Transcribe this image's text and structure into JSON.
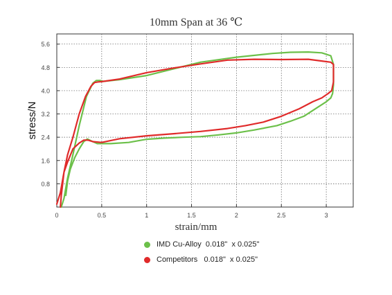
{
  "chart_data": {
    "type": "line",
    "title": "10mm Span at 36 ℃",
    "xlabel": "strain/mm",
    "ylabel": "stress/N",
    "xlim": [
      0,
      3.3
    ],
    "ylim": [
      0,
      5.95
    ],
    "x_ticks": [
      0,
      0.5,
      1,
      1.5,
      2,
      2.5,
      3
    ],
    "x_tick_labels": [
      "0",
      "0.5",
      "1",
      "1.5",
      "2",
      "2.5",
      "3"
    ],
    "y_ticks": [
      0.8,
      1.6,
      2.4,
      3.2,
      4.0,
      4.8,
      5.6
    ],
    "y_tick_labels": [
      "0.8",
      "1.6",
      "2.4",
      "3.2",
      "4.0",
      "4.8",
      "5.6"
    ],
    "grid": "dotted",
    "legend_position": "bottom",
    "series": [
      {
        "name": "IMD Cu-Alloy  0.018\"  x 0.025\"",
        "color": "#6cc04a",
        "x": [
          0.05,
          0.08,
          0.12,
          0.18,
          0.25,
          0.33,
          0.4,
          0.44,
          0.48,
          0.52,
          0.7,
          1.0,
          1.3,
          1.6,
          2.0,
          2.4,
          2.6,
          2.8,
          2.95,
          3.05,
          3.08,
          3.08,
          3.07,
          3.05,
          3.0,
          2.9,
          2.75,
          2.6,
          2.45,
          2.2,
          2.0,
          1.8,
          1.6,
          1.4,
          1.2,
          1.0,
          0.8,
          0.6,
          0.45,
          0.38,
          0.34,
          0.3,
          0.25,
          0.2,
          0.15,
          0.12,
          0.1
        ],
        "y": [
          0.0,
          0.3,
          1.0,
          1.8,
          2.8,
          3.8,
          4.25,
          4.35,
          4.35,
          4.32,
          4.38,
          4.52,
          4.75,
          4.98,
          5.15,
          5.28,
          5.32,
          5.33,
          5.3,
          5.2,
          4.9,
          4.2,
          3.9,
          3.75,
          3.62,
          3.42,
          3.12,
          2.95,
          2.8,
          2.65,
          2.55,
          2.48,
          2.42,
          2.4,
          2.37,
          2.33,
          2.22,
          2.18,
          2.18,
          2.28,
          2.34,
          2.25,
          2.0,
          1.7,
          1.3,
          0.9,
          0.4
        ]
      },
      {
        "name": "Competitors   0.018\"  x 0.025\"",
        "color": "#e02a2a",
        "x": [
          0.0,
          0.04,
          0.08,
          0.12,
          0.18,
          0.25,
          0.32,
          0.38,
          0.42,
          0.46,
          0.5,
          0.7,
          1.0,
          1.3,
          1.6,
          1.9,
          2.2,
          2.5,
          2.8,
          2.95,
          3.05,
          3.08,
          3.08,
          3.06,
          3.02,
          2.95,
          2.85,
          2.7,
          2.5,
          2.3,
          2.1,
          1.9,
          1.6,
          1.3,
          1.0,
          0.7,
          0.5,
          0.4,
          0.35,
          0.3,
          0.25,
          0.18,
          0.12,
          0.08,
          0.05,
          0.04
        ],
        "y": [
          0.1,
          0.5,
          1.2,
          1.8,
          2.4,
          3.2,
          3.8,
          4.15,
          4.28,
          4.3,
          4.31,
          4.4,
          4.62,
          4.78,
          4.92,
          5.05,
          5.08,
          5.07,
          5.08,
          5.02,
          4.98,
          4.9,
          4.3,
          4.0,
          3.9,
          3.75,
          3.62,
          3.38,
          3.12,
          2.92,
          2.8,
          2.7,
          2.6,
          2.52,
          2.45,
          2.35,
          2.22,
          2.25,
          2.3,
          2.3,
          2.2,
          2.0,
          1.55,
          1.2,
          0.4,
          0.0
        ]
      }
    ]
  }
}
